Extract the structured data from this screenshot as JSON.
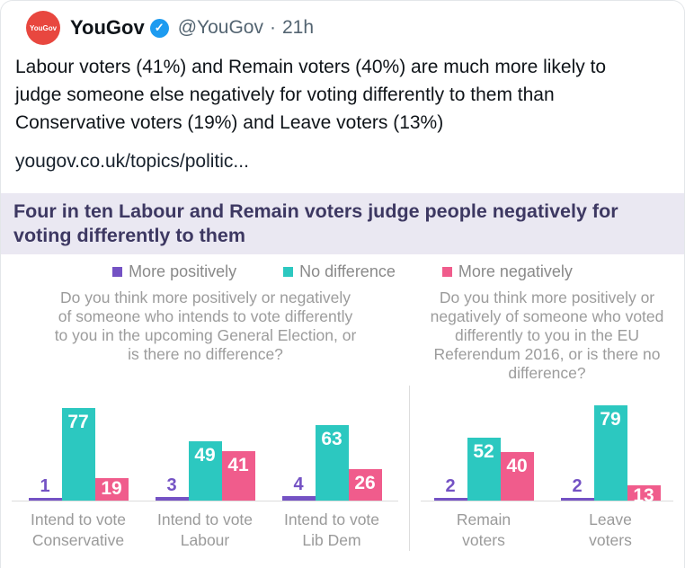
{
  "tweet": {
    "author": "YouGov",
    "avatar_label": "YouGov",
    "handle": "@YouGov",
    "separator": "·",
    "time": "21h",
    "text": "Labour voters (41%) and Remain voters (40%) are much more likely to judge someone else negatively for voting differently to them than Conservative voters (19%) and Leave voters (13%)",
    "link": "yougov.co.uk/topics/politic..."
  },
  "chart_header": {
    "title": "Four in ten Labour and Remain voters judge people negatively for voting differently to them",
    "title_bg_color": "#eae8f2",
    "title_text_color": "#3d3862"
  },
  "theme": {
    "brand_red": "#e8473f",
    "verified_blue": "#1d9bf0",
    "purple": "#7452c4",
    "teal": "#2cc8c0",
    "pink": "#f05c8c",
    "axis_line": "#dcdcdc"
  },
  "chart_data": [
    {
      "type": "bar",
      "title": "Do you think more positively or negatively of someone who intends to vote differently to you in the upcoming General Election, or is there no difference?",
      "categories": [
        "Intend to vote\nConservative",
        "Intend to vote\nLabour",
        "Intend to vote\nLib Dem"
      ],
      "series": [
        {
          "name": "More positively",
          "color": "#7452c4",
          "values": [
            1,
            3,
            4
          ]
        },
        {
          "name": "No difference",
          "color": "#2cc8c0",
          "values": [
            77,
            49,
            63
          ]
        },
        {
          "name": "More negatively",
          "color": "#f05c8c",
          "values": [
            19,
            41,
            26
          ]
        }
      ],
      "ylim": [
        0,
        80
      ],
      "grid": false,
      "legend_position": "top",
      "value_labels": true
    },
    {
      "type": "bar",
      "title": "Do you think more positively or negatively of someone who voted differently to you in the EU Referendum 2016, or is there no difference?",
      "categories": [
        "Remain\nvoters",
        "Leave\nvoters"
      ],
      "series": [
        {
          "name": "More positively",
          "color": "#7452c4",
          "values": [
            2,
            2
          ]
        },
        {
          "name": "No difference",
          "color": "#2cc8c0",
          "values": [
            52,
            79
          ]
        },
        {
          "name": "More negatively",
          "color": "#f05c8c",
          "values": [
            40,
            13
          ]
        }
      ],
      "ylim": [
        0,
        80
      ],
      "grid": false,
      "legend_position": "top",
      "value_labels": true
    }
  ]
}
